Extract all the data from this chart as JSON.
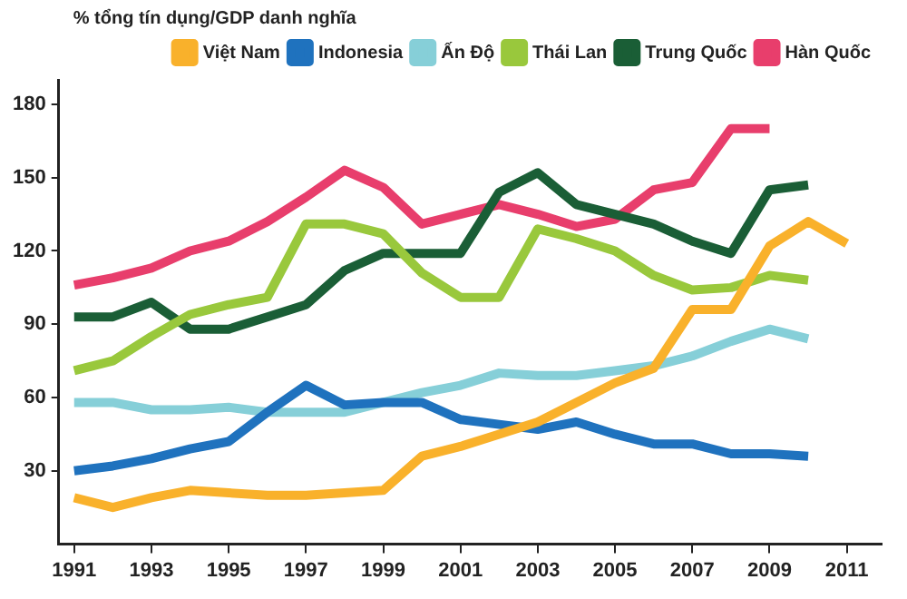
{
  "chart_data": {
    "type": "line",
    "ylabel": "% tổng tín dụng/GDP danh nghĩa",
    "x": [
      1991,
      1992,
      1993,
      1994,
      1995,
      1996,
      1997,
      1998,
      1999,
      2000,
      2001,
      2002,
      2003,
      2004,
      2005,
      2006,
      2007,
      2008,
      2009,
      2010,
      2011
    ],
    "series": [
      {
        "name": "Việt Nam",
        "color": "#f9b12b",
        "values": [
          19,
          15,
          19,
          22,
          21,
          20,
          20,
          21,
          22,
          36,
          40,
          45,
          50,
          58,
          66,
          72,
          96,
          96,
          122,
          132,
          123
        ]
      },
      {
        "name": "Indonesia",
        "color": "#1f72be",
        "values": [
          30,
          32,
          35,
          39,
          42,
          54,
          65,
          57,
          58,
          58,
          51,
          49,
          47,
          50,
          45,
          41,
          41,
          37,
          37,
          36,
          null
        ]
      },
      {
        "name": "Ấn Độ",
        "color": "#86cfd8",
        "values": [
          58,
          58,
          55,
          55,
          56,
          54,
          54,
          54,
          58,
          62,
          65,
          70,
          69,
          69,
          71,
          73,
          77,
          83,
          88,
          84,
          null
        ]
      },
      {
        "name": "Thái Lan",
        "color": "#99c83c",
        "values": [
          71,
          75,
          85,
          94,
          98,
          101,
          131,
          131,
          127,
          111,
          101,
          101,
          129,
          125,
          120,
          110,
          104,
          105,
          110,
          108,
          null
        ]
      },
      {
        "name": "Trung Quốc",
        "color": "#1a5e36",
        "values": [
          93,
          93,
          99,
          88,
          88,
          93,
          98,
          112,
          119,
          119,
          119,
          144,
          152,
          139,
          135,
          131,
          124,
          119,
          145,
          147,
          null
        ]
      },
      {
        "name": "Hàn Quốc",
        "color": "#e83e6c",
        "values": [
          106,
          109,
          113,
          120,
          124,
          132,
          142,
          153,
          146,
          131,
          135,
          139,
          135,
          130,
          133,
          145,
          148,
          170,
          170,
          null,
          null
        ]
      }
    ],
    "xlim": [
      1990.6,
      2011.9
    ],
    "xticks": [
      1991,
      1993,
      1995,
      1997,
      1999,
      2001,
      2003,
      2005,
      2007,
      2009,
      2011
    ],
    "ylim": [
      0,
      190
    ],
    "yticks": [
      30,
      60,
      90,
      120,
      150,
      180
    ],
    "grid": false,
    "legend": "top right",
    "marker": "none",
    "line_style": "solid"
  }
}
